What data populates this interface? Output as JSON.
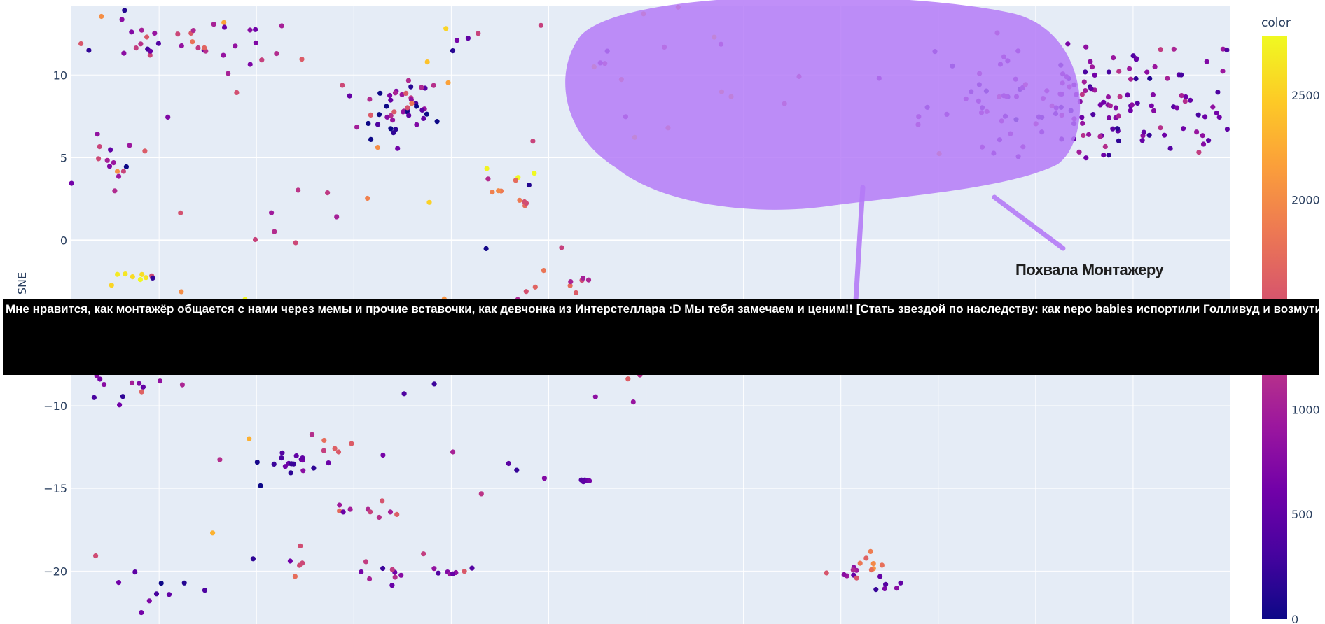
{
  "chart_data": {
    "type": "scatter",
    "title": "",
    "xlabel": "",
    "ylabel": "SNE",
    "ylim": [
      -23.2,
      14.2
    ],
    "xlim": [
      -39.5,
      20
    ],
    "y_ticks": [
      "10",
      "5",
      "0",
      "−10",
      "−15",
      "−20"
    ],
    "grid": true,
    "colorbar": {
      "title": "color",
      "range": [
        0,
        2780
      ],
      "ticks": [
        "2500",
        "2000",
        "1000",
        "500",
        "0"
      ],
      "colorscale": [
        "#0d0887",
        "#46039f",
        "#7201a8",
        "#9c179e",
        "#bd3786",
        "#d8576b",
        "#ed7953",
        "#fb9f3a",
        "#fdca26",
        "#f0f921"
      ]
    },
    "annotation": {
      "text": "Похвала Монтажеру",
      "blob_color": "#b57bf7",
      "position": "top-right"
    },
    "tooltip_text": "Мне нравится, как монтажёр общается с нами через мемы и прочие вставочки, как девчонка из Интерстеллара :D Мы тебя замечаем и ценим!! [Стать звездой по наследству: как nepo babies испортили Голливуд и возмутили всех]",
    "clusters": [
      {
        "cx": 13.5,
        "cy": 8.3,
        "sx": 4.5,
        "sy": 1.6,
        "n": 170,
        "c": 700,
        "cs": 500
      },
      {
        "cx": -22.6,
        "cy": 7.9,
        "sx": 1.1,
        "sy": 0.9,
        "n": 45,
        "c": 500,
        "cs": 900
      },
      {
        "cx": -36.5,
        "cy": 12.3,
        "sx": 1.4,
        "sy": 1.1,
        "n": 18,
        "c": 900,
        "cs": 800
      },
      {
        "cx": -31.0,
        "cy": 11.8,
        "sx": 2.0,
        "sy": 1.2,
        "n": 22,
        "c": 1100,
        "cs": 700
      },
      {
        "cx": -37.0,
        "cy": 4.5,
        "sx": 1.0,
        "sy": 0.8,
        "n": 16,
        "c": 900,
        "cs": 700
      },
      {
        "cx": -17.5,
        "cy": 3.2,
        "sx": 1.3,
        "sy": 0.7,
        "n": 12,
        "c": 1500,
        "cs": 900
      },
      {
        "cx": -36.5,
        "cy": -2.3,
        "sx": 0.8,
        "sy": 0.3,
        "n": 7,
        "c": 2600,
        "cs": 200
      },
      {
        "cx": -18.6,
        "cy": -4.5,
        "sx": 1.6,
        "sy": 1.0,
        "n": 14,
        "c": 1200,
        "cs": 800
      },
      {
        "cx": -15.0,
        "cy": -2.5,
        "sx": 2.2,
        "sy": 0.8,
        "n": 10,
        "c": 1200,
        "cs": 700
      },
      {
        "cx": -36.0,
        "cy": -8.6,
        "sx": 2.0,
        "sy": 0.6,
        "n": 12,
        "c": 700,
        "cs": 700
      },
      {
        "cx": -20.0,
        "cy": -8.3,
        "sx": 2.0,
        "sy": 0.4,
        "n": 8,
        "c": 700,
        "cs": 600
      },
      {
        "cx": -28.3,
        "cy": -13.5,
        "sx": 0.8,
        "sy": 0.25,
        "n": 16,
        "c": 400,
        "cs": 300
      },
      {
        "cx": -25.8,
        "cy": -12.6,
        "sx": 0.6,
        "sy": 0.3,
        "n": 5,
        "c": 1600,
        "cs": 400
      },
      {
        "cx": -24.0,
        "cy": -16.3,
        "sx": 1.2,
        "sy": 0.4,
        "n": 8,
        "c": 1400,
        "cs": 500
      },
      {
        "cx": -34.5,
        "cy": -21.0,
        "sx": 1.2,
        "sy": 0.5,
        "n": 8,
        "c": 400,
        "cs": 300
      },
      {
        "cx": -23.2,
        "cy": -20.4,
        "sx": 0.8,
        "sy": 0.3,
        "n": 7,
        "c": 700,
        "cs": 400
      },
      {
        "cx": -20.2,
        "cy": -20.0,
        "sx": 0.6,
        "sy": 0.15,
        "n": 8,
        "c": 1000,
        "cs": 600
      },
      {
        "cx": 0.6,
        "cy": -20.0,
        "sx": 0.9,
        "sy": 0.3,
        "n": 8,
        "c": 900,
        "cs": 700
      },
      {
        "cx": 1.6,
        "cy": -19.5,
        "sx": 0.4,
        "sy": 0.6,
        "n": 7,
        "c": 1800,
        "cs": 300
      },
      {
        "cx": 2.2,
        "cy": -20.6,
        "sx": 0.4,
        "sy": 0.2,
        "n": 6,
        "c": 600,
        "cs": 400
      },
      {
        "cx": -13.2,
        "cy": -14.6,
        "sx": 0.3,
        "sy": 0.1,
        "n": 5,
        "c": 400,
        "cs": 200
      },
      {
        "cx": -11.6,
        "cy": -8.6,
        "sx": 1.2,
        "sy": 0.5,
        "n": 6,
        "c": 900,
        "cs": 600
      },
      {
        "cx": -16.0,
        "cy": 10.0,
        "sx": 10.0,
        "sy": 4.0,
        "n": 40,
        "c": 1300,
        "cs": 1000
      },
      {
        "cx": -28.0,
        "cy": -18.0,
        "sx": 8.0,
        "sy": 3.0,
        "n": 25,
        "c": 1200,
        "cs": 900
      },
      {
        "cx": -30.0,
        "cy": 0.0,
        "sx": 8.0,
        "sy": 4.0,
        "n": 20,
        "c": 1500,
        "cs": 1000
      }
    ]
  }
}
